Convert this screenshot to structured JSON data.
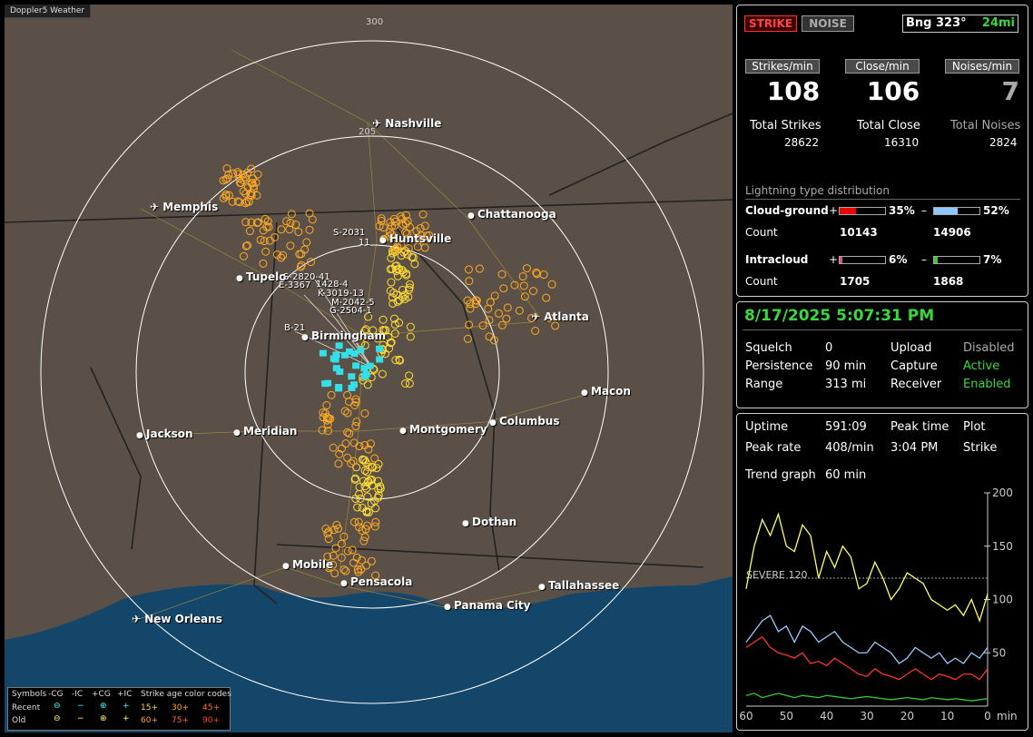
{
  "app": {
    "title": "Doppler5 Weather"
  },
  "map": {
    "ring_labels": [
      "300",
      "205"
    ],
    "cities": [
      {
        "name": "Nashville",
        "type": "airport"
      },
      {
        "name": "Memphis",
        "type": "airport"
      },
      {
        "name": "Chattanooga",
        "type": "city"
      },
      {
        "name": "Huntsville",
        "type": "city"
      },
      {
        "name": "Tupelo",
        "type": "city"
      },
      {
        "name": "Atlanta",
        "type": "airport"
      },
      {
        "name": "Birmingham",
        "type": "city"
      },
      {
        "name": "Macon",
        "type": "city"
      },
      {
        "name": "Jackson",
        "type": "city"
      },
      {
        "name": "Meridian",
        "type": "city"
      },
      {
        "name": "Montgomery",
        "type": "city"
      },
      {
        "name": "Columbus",
        "type": "city"
      },
      {
        "name": "Dothan",
        "type": "city"
      },
      {
        "name": "Mobile",
        "type": "city"
      },
      {
        "name": "Pensacola",
        "type": "city"
      },
      {
        "name": "Tallahassee",
        "type": "city"
      },
      {
        "name": "Panama City",
        "type": "city"
      },
      {
        "name": "New Orleans",
        "type": "airport"
      }
    ],
    "track_labels": [
      "S-2031",
      "11",
      "S-2820-41",
      "E-3367",
      "1428-4",
      "K-3019-13",
      "M-2042-5",
      "G-2504-1",
      "B-21"
    ]
  },
  "legend": {
    "symbols_label": "Symbols",
    "cols": [
      "-CG",
      "-IC",
      "+CG",
      "+IC"
    ],
    "age_title": "Strike age color codes",
    "recent_label": "Recent",
    "old_label": "Old",
    "recent_ages": [
      "15+",
      "30+",
      "45+"
    ],
    "old_ages": [
      "60+",
      "75+",
      "90+"
    ],
    "age_colors": [
      "#ffd84a",
      "#ffaa22",
      "#ff7722"
    ]
  },
  "top": {
    "strike_btn": "STRIKE",
    "noise_btn": "NOISE",
    "bearing": "Bng 323°",
    "range": "24mi",
    "strikes_min_label": "Strikes/min",
    "close_min_label": "Close/min",
    "noises_min_label": "Noises/min",
    "strikes_min": "108",
    "close_min": "106",
    "noises_min": "7",
    "total_strikes_label": "Total Strikes",
    "total_close_label": "Total Close",
    "total_noises_label": "Total Noises",
    "total_strikes": "28622",
    "total_close": "16310",
    "total_noises": "2824",
    "dist_title": "Lightning type distribution",
    "cg_label": "Cloud-ground",
    "ic_label": "Intracloud",
    "count_label": "Count",
    "plus": "+",
    "minus": "–",
    "cg_pos_pct": "35%",
    "cg_neg_pct": "52%",
    "ic_pos_pct": "6%",
    "ic_neg_pct": "7%",
    "cg_pos_frac": 0.35,
    "cg_neg_frac": 0.52,
    "ic_pos_frac": 0.06,
    "ic_neg_frac": 0.07,
    "cg_pos_count": "10143",
    "cg_neg_count": "14906",
    "ic_pos_count": "1705",
    "ic_neg_count": "1868"
  },
  "mid": {
    "datetime": "8/17/2025 5:07:31 PM",
    "squelch_label": "Squelch",
    "squelch": "0",
    "upload_label": "Upload",
    "upload": "Disabled",
    "persistence_label": "Persistence",
    "persistence": "90 min",
    "capture_label": "Capture",
    "capture": "Active",
    "range_label": "Range",
    "range": "313 mi",
    "receiver_label": "Receiver",
    "receiver": "Enabled"
  },
  "bottom": {
    "uptime_label": "Uptime",
    "uptime": "591:09",
    "peak_time_label": "Peak time",
    "peak_time": "3:04 PM",
    "plot_label": "Plot",
    "plot": "Strike",
    "peak_rate_label": "Peak rate",
    "peak_rate": "408/min",
    "trend_label": "Trend graph",
    "trend": "60 min",
    "severe_label": "SEVERE 120",
    "min_label": "min"
  },
  "chart_data": {
    "type": "line",
    "x": [
      60,
      58,
      56,
      54,
      52,
      50,
      48,
      46,
      44,
      42,
      40,
      38,
      36,
      34,
      32,
      30,
      28,
      26,
      24,
      22,
      20,
      18,
      16,
      14,
      12,
      10,
      8,
      6,
      4,
      2,
      0
    ],
    "xlabel": "min",
    "x_ticks": [
      "60",
      "50",
      "40",
      "30",
      "20",
      "10",
      "0"
    ],
    "y_ticks": [
      "200",
      "150",
      "100",
      "50"
    ],
    "ylim": [
      0,
      200
    ],
    "xlim": [
      60,
      0
    ],
    "threshold": 120,
    "series": [
      {
        "color": "#ffff66",
        "values": [
          110,
          150,
          175,
          160,
          180,
          150,
          145,
          170,
          160,
          120,
          145,
          130,
          150,
          140,
          110,
          115,
          135,
          120,
          100,
          110,
          125,
          120,
          115,
          100,
          95,
          90,
          95,
          85,
          100,
          80,
          105
        ]
      },
      {
        "color": "#ff3333",
        "values": [
          55,
          60,
          65,
          55,
          50,
          48,
          45,
          50,
          40,
          42,
          38,
          45,
          40,
          35,
          30,
          28,
          35,
          30,
          28,
          25,
          30,
          35,
          30,
          25,
          30,
          28,
          25,
          30,
          30,
          25,
          35
        ]
      },
      {
        "color": "#99ccff",
        "values": [
          60,
          70,
          80,
          85,
          70,
          75,
          60,
          75,
          70,
          60,
          65,
          70,
          60,
          55,
          50,
          50,
          60,
          55,
          50,
          40,
          45,
          55,
          50,
          45,
          50,
          40,
          45,
          40,
          50,
          45,
          55
        ]
      },
      {
        "color": "#33cc33",
        "values": [
          10,
          12,
          8,
          10,
          12,
          10,
          8,
          10,
          9,
          8,
          10,
          9,
          8,
          7,
          8,
          9,
          8,
          7,
          6,
          7,
          8,
          7,
          6,
          8,
          7,
          6,
          7,
          6,
          5,
          6,
          7
        ]
      }
    ]
  }
}
